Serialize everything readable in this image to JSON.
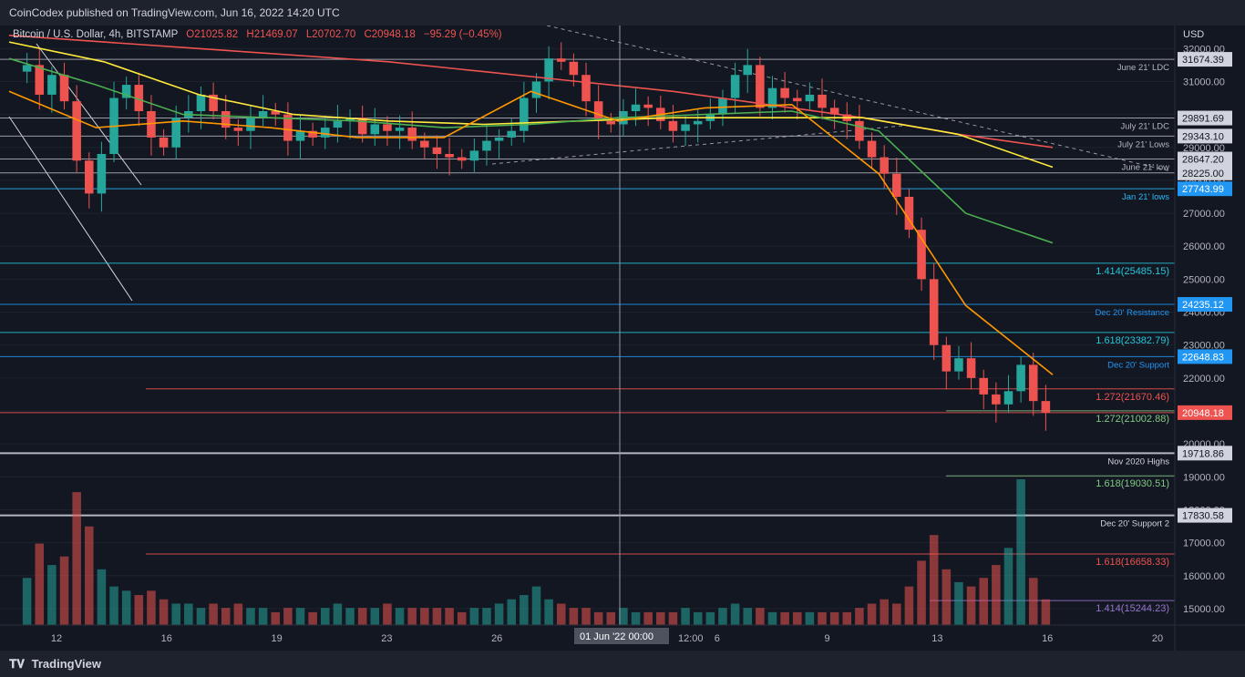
{
  "header": {
    "publish_text": "CoinCodex published on TradingView.com, Jun 16, 2022 14:20 UTC",
    "symbol": "Bitcoin / U.S. Dollar, 4h, BITSTAMP",
    "open": "O21025.82",
    "high": "H21469.07",
    "low": "L20702.70",
    "close": "C20948.18",
    "change": "−95.29 (−0.45%)"
  },
  "footer": {
    "brand": "TradingView"
  },
  "chart_data": {
    "type": "candlestick",
    "symbol": "Bitcoin / U.S. Dollar",
    "timeframe": "4h",
    "exchange": "BITSTAMP",
    "currency": "USD",
    "ylim": [
      14500,
      32700
    ],
    "y_ticks": [
      15000,
      16000,
      17000,
      18000,
      19000,
      20000,
      21000,
      22000,
      23000,
      24000,
      25000,
      26000,
      27000,
      28000,
      29000,
      30000,
      31000,
      32000
    ],
    "x_ticks": [
      "12",
      "16",
      "19",
      "23",
      "26",
      "29",
      "6",
      "9",
      "13",
      "16",
      "20"
    ],
    "crosshair_label": "01 Jun '22   00:00",
    "time_label_mid": "12:00",
    "colors": {
      "up": "#26a69a",
      "down": "#ef5350",
      "background": "#131722"
    },
    "horizontal_levels": [
      {
        "price": 31674.39,
        "price_label": "31674.39",
        "caption": "June 21' LDC",
        "color": "#b2b5be"
      },
      {
        "price": 29891.69,
        "price_label": "29891.69",
        "caption": "July 21' LDC",
        "color": "#b2b5be"
      },
      {
        "price": 29343.1,
        "price_label": "29343.10",
        "caption": "July 21' Lows",
        "color": "#b2b5be"
      },
      {
        "price": 28647.2,
        "price_label": "28647.20",
        "caption": "June 21' low",
        "color": "#b2b5be"
      },
      {
        "price": 28225.0,
        "price_label": "28225.00",
        "caption": "",
        "color": "#b2b5be"
      },
      {
        "price": 27743.99,
        "price_label": "27743.99",
        "caption": "Jan 21' lows",
        "color": "#29b6f6"
      },
      {
        "price": 25485.15,
        "price_label": "",
        "caption": "1.414(25485.15)",
        "color": "#26c6da"
      },
      {
        "price": 24235.12,
        "price_label": "24235.12",
        "caption": "Dec 20' Resistance",
        "color": "#2196f3"
      },
      {
        "price": 23382.79,
        "price_label": "",
        "caption": "1.618(23382.79)",
        "color": "#26c6da"
      },
      {
        "price": 22648.83,
        "price_label": "22648.83",
        "caption": "Dec 20' Support",
        "color": "#2196f3"
      },
      {
        "price": 21670.46,
        "price_label": "",
        "caption": "1.272(21670.46)",
        "color": "#ef5350"
      },
      {
        "price": 21002.88,
        "price_label": "",
        "caption": "1.272(21002.88)",
        "color": "#81c784"
      },
      {
        "price": 20948.18,
        "price_label": "20948.18",
        "caption": "",
        "color": "#ef5350"
      },
      {
        "price": 19718.86,
        "price_label": "19718.86",
        "caption": "Nov 2020 Highs",
        "color": "#d1d4dc"
      },
      {
        "price": 19030.51,
        "price_label": "",
        "caption": "1.618(19030.51)",
        "color": "#81c784"
      },
      {
        "price": 17830.58,
        "price_label": "17830.58",
        "caption": "Dec 20' Support 2",
        "color": "#d1d4dc"
      },
      {
        "price": 16658.33,
        "price_label": "",
        "caption": "1.618(16658.33)",
        "color": "#ef5350"
      },
      {
        "price": 15244.23,
        "price_label": "",
        "caption": "1.414(15244.23)",
        "color": "#9575cd"
      }
    ],
    "ohlc_path": [
      31300,
      31500,
      30600,
      31200,
      30400,
      28600,
      27600,
      28800,
      30500,
      30900,
      30100,
      29300,
      29000,
      29900,
      30100,
      30600,
      30100,
      29600,
      29500,
      29900,
      30100,
      30000,
      29200,
      29500,
      29300,
      29600,
      29800,
      29900,
      29400,
      29700,
      29500,
      29600,
      29200,
      29000,
      28800,
      28700,
      28600,
      28900,
      29200,
      29300,
      29500,
      30500,
      31000,
      31700,
      31600,
      31200,
      30400,
      29800,
      29700,
      30100,
      30300,
      30200,
      29800,
      29500,
      29700,
      29800,
      30000,
      30500,
      31200,
      31500,
      30200,
      30800,
      30500,
      30400,
      30600,
      30200,
      30000,
      29800,
      29200,
      28700,
      28200,
      27500,
      26500,
      25000,
      23000,
      22200,
      22600,
      22000,
      21500,
      21200,
      21600,
      22400,
      21300,
      20950
    ],
    "volume": [
      1.3,
      1.1,
      1.9,
      1.4,
      1.6,
      3.1,
      2.3,
      1.3,
      0.9,
      0.8,
      0.7,
      0.8,
      0.6,
      0.5,
      0.5,
      0.4,
      0.5,
      0.4,
      0.5,
      0.4,
      0.4,
      0.3,
      0.4,
      0.4,
      0.3,
      0.4,
      0.5,
      0.4,
      0.4,
      0.4,
      0.5,
      0.4,
      0.4,
      0.4,
      0.4,
      0.4,
      0.3,
      0.4,
      0.4,
      0.5,
      0.6,
      0.7,
      0.9,
      0.6,
      0.5,
      0.4,
      0.4,
      0.3,
      0.3,
      0.4,
      0.3,
      0.3,
      0.3,
      0.3,
      0.4,
      0.3,
      0.3,
      0.4,
      0.5,
      0.4,
      0.4,
      0.3,
      0.3,
      0.3,
      0.3,
      0.3,
      0.3,
      0.3,
      0.4,
      0.5,
      0.6,
      0.5,
      0.9,
      1.5,
      2.1,
      1.3,
      1.0,
      0.9,
      1.1,
      1.4,
      1.8,
      3.4,
      1.1,
      0.6
    ],
    "moving_averages": [
      {
        "color": "#ef5350",
        "values": [
          32400,
          32200,
          32000,
          31800,
          31600,
          31300,
          31000,
          30700,
          30300,
          29900,
          29400,
          29000
        ]
      },
      {
        "color": "#ffeb3b",
        "values": [
          32200,
          31600,
          30600,
          30000,
          29800,
          29700,
          29800,
          29900,
          29900,
          29900,
          29400,
          28400
        ]
      },
      {
        "color": "#4caf50",
        "values": [
          31700,
          30900,
          30000,
          29900,
          29800,
          29600,
          29700,
          29900,
          30000,
          30100,
          29500,
          27000,
          26100
        ]
      },
      {
        "color": "#ff9800",
        "values": [
          30700,
          29600,
          29800,
          29600,
          29300,
          29300,
          30700,
          29800,
          30200,
          30300,
          28200,
          24200,
          22100
        ]
      }
    ]
  }
}
